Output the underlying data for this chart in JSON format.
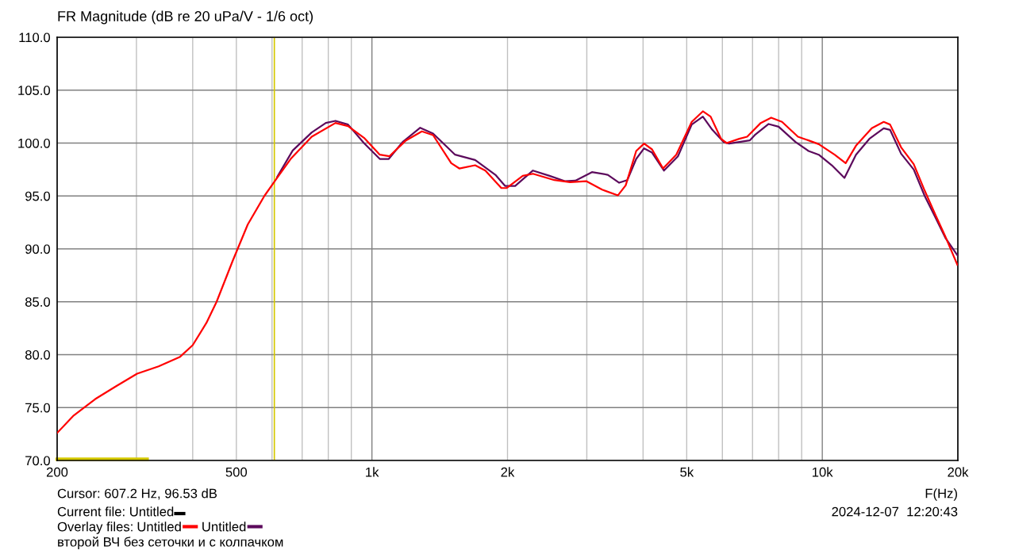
{
  "chart_data": {
    "type": "line",
    "title": "FR Magnitude (dB re 20 uPa/V - 1/6 oct)",
    "xlabel": "F(Hz)",
    "log": "x",
    "grid": true,
    "legend": "bottom left",
    "line_style": "solid",
    "marker": "none",
    "xlim": [
      200,
      20000
    ],
    "ylim": [
      70,
      110
    ],
    "xticks": [
      200,
      {
        "value": 300,
        "label": null
      },
      {
        "value": 400,
        "label": null
      },
      500,
      {
        "value": 600,
        "label": null
      },
      {
        "value": 700,
        "label": null
      },
      {
        "value": 800,
        "label": null
      },
      {
        "value": 900,
        "label": null
      },
      {
        "value": 1000,
        "label": "1k"
      },
      {
        "value": 2000,
        "label": "2k"
      },
      {
        "value": 3000,
        "label": null
      },
      {
        "value": 4000,
        "label": null
      },
      {
        "value": 5000,
        "label": "5k"
      },
      {
        "value": 6000,
        "label": null
      },
      {
        "value": 7000,
        "label": null
      },
      {
        "value": 8000,
        "label": null
      },
      {
        "value": 9000,
        "label": null
      },
      {
        "value": 10000,
        "label": "10k"
      },
      {
        "value": 20000,
        "label": "20k"
      }
    ],
    "yticks": [
      {
        "value": 70,
        "label": "70.0"
      },
      {
        "value": 75,
        "label": "75.0"
      },
      {
        "value": 80,
        "label": "80.0"
      },
      {
        "value": 85,
        "label": "85.0"
      },
      {
        "value": 90,
        "label": "90.0"
      },
      {
        "value": 95,
        "label": "95.0"
      },
      {
        "value": 100,
        "label": "100.0"
      },
      {
        "value": 105,
        "label": "105.0"
      },
      {
        "value": 110,
        "label": "110.0"
      }
    ],
    "series": [
      {
        "name": "Untitled",
        "color": "#ff0000",
        "x": [
          200,
          217,
          243,
          270,
          301,
          336,
          375,
          400,
          429,
          452,
          490,
          530,
          577,
          611,
          660,
          735,
          830,
          885,
          960,
          1041,
          1093,
          1190,
          1291,
          1367,
          1500,
          1563,
          1695,
          1786,
          1938,
          1993,
          2162,
          2278,
          2541,
          2754,
          2991,
          3244,
          3516,
          3660,
          3862,
          4021,
          4188,
          4430,
          4740,
          5130,
          5430,
          5650,
          5960,
          6130,
          6540,
          6810,
          7300,
          7700,
          8140,
          8830,
          9320,
          9820,
          10650,
          11270,
          11880,
          12880,
          13690,
          14140,
          14960,
          15960,
          16880,
          17820,
          18790,
          19950
        ],
        "values": [
          72.6,
          74.2,
          75.8,
          77.0,
          78.2,
          78.9,
          79.8,
          80.9,
          83.0,
          85.0,
          88.8,
          92.3,
          95.0,
          96.5,
          98.5,
          100.6,
          101.9,
          101.6,
          100.5,
          98.9,
          98.75,
          100.25,
          101.1,
          100.75,
          98.1,
          97.6,
          97.9,
          97.4,
          95.75,
          95.75,
          96.9,
          97.1,
          96.5,
          96.3,
          96.4,
          95.6,
          95.05,
          96.0,
          99.25,
          99.95,
          99.4,
          97.6,
          98.9,
          102.0,
          103.0,
          102.5,
          100.4,
          100.0,
          100.4,
          100.6,
          101.9,
          102.4,
          102.0,
          100.6,
          100.25,
          99.9,
          98.9,
          98.1,
          99.75,
          101.4,
          102.0,
          101.75,
          99.6,
          98.0,
          95.5,
          93.25,
          91.1,
          88.5
        ]
      },
      {
        "name": "Untitled",
        "color": "#5c0a5c",
        "x": [
          616,
          667,
          735,
          790,
          830,
          885,
          960,
          1041,
          1090,
          1170,
          1280,
          1367,
          1530,
          1595,
          1695,
          1880,
          1975,
          2080,
          2278,
          2480,
          2680,
          2830,
          3080,
          3340,
          3540,
          3690,
          3862,
          4021,
          4188,
          4450,
          4780,
          5130,
          5430,
          5700,
          6040,
          6210,
          6900,
          7080,
          7600,
          8000,
          8720,
          9320,
          9820,
          10500,
          11200,
          11880,
          12720,
          13690,
          14140,
          14960,
          15960,
          16880,
          17820,
          18790,
          19950
        ],
        "values": [
          96.8,
          99.3,
          101.0,
          101.9,
          102.1,
          101.75,
          100.0,
          98.5,
          98.5,
          100.1,
          101.45,
          100.9,
          98.9,
          98.7,
          98.4,
          97.0,
          95.95,
          95.95,
          97.4,
          96.9,
          96.4,
          96.45,
          97.25,
          97.0,
          96.25,
          96.5,
          98.5,
          99.5,
          99.1,
          97.4,
          98.75,
          101.75,
          102.5,
          101.25,
          100.1,
          99.95,
          100.25,
          100.75,
          101.8,
          101.55,
          100.1,
          99.25,
          98.9,
          97.9,
          96.7,
          98.9,
          100.4,
          101.4,
          101.25,
          99.0,
          97.5,
          95.0,
          93.0,
          91.0,
          89.4
        ]
      }
    ],
    "ref_lines": [
      {
        "axis": "x",
        "value": 607.2,
        "color": "#d4c800"
      }
    ],
    "annotations": [
      "Cursor: 607.2 Hz, 96.53 dB",
      "Current file: Untitled",
      "Overlay files:",
      "второй ВЧ без сеточки и с колпачком",
      "2024-12-07  12:20:43"
    ]
  }
}
